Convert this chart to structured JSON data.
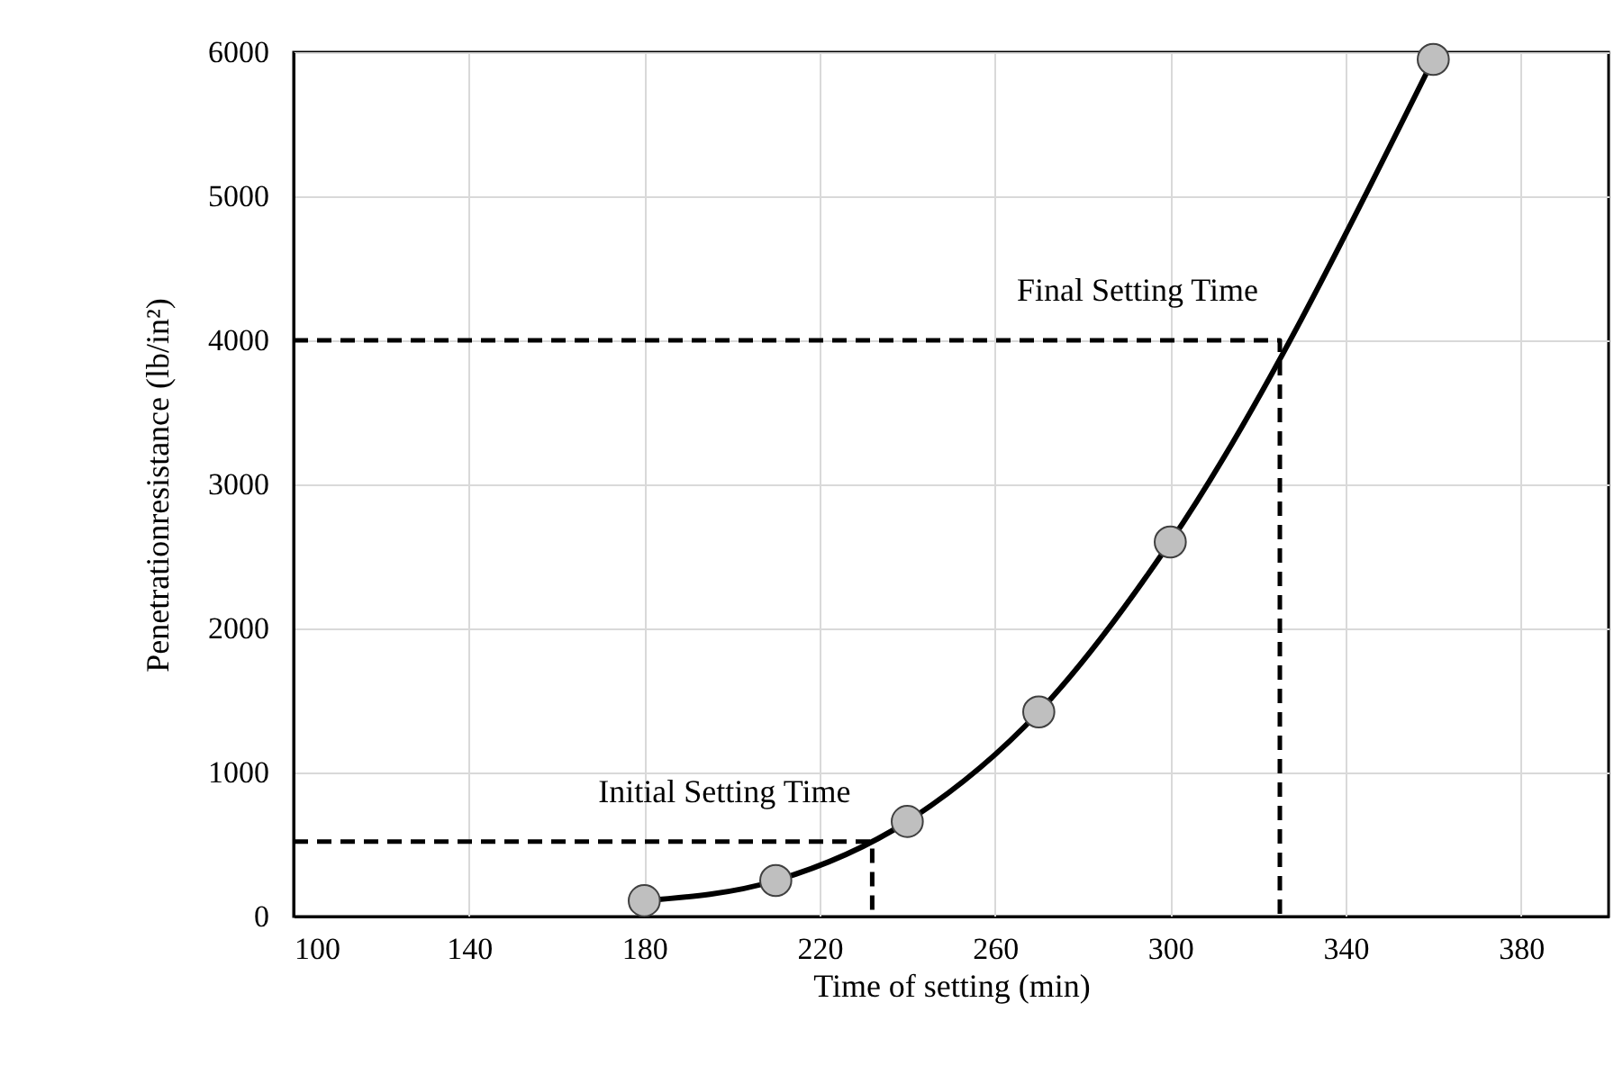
{
  "chart_data": {
    "type": "line",
    "xlabel": "Time of setting (min)",
    "ylabel": "Penetrationresistance (lb/in²)",
    "xlim": [
      100,
      400
    ],
    "xticks": [
      100,
      140,
      180,
      220,
      260,
      300,
      340,
      380
    ],
    "ylim": [
      0,
      6000
    ],
    "yticks": [
      0,
      1000,
      2000,
      3000,
      4000,
      5000,
      6000
    ],
    "grid": true,
    "series": [
      {
        "color": "#000000",
        "marker": "circle",
        "line_style": "solid",
        "x": [
          180,
          210,
          240,
          270,
          300,
          360
        ],
        "values": [
          110,
          250,
          660,
          1420,
          2600,
          5950
        ]
      },
      {
        "color": "#000000",
        "marker": "none",
        "line_style": "dashed",
        "x": [
          100,
          232,
          232
        ],
        "values": [
          520,
          520,
          0
        ]
      },
      {
        "color": "#000000",
        "marker": "none",
        "line_style": "dashed",
        "x": [
          100,
          325,
          325
        ],
        "values": [
          4000,
          4000,
          0
        ]
      }
    ],
    "annotations": [
      "Initial Setting Time",
      "Final Setting Time"
    ]
  }
}
